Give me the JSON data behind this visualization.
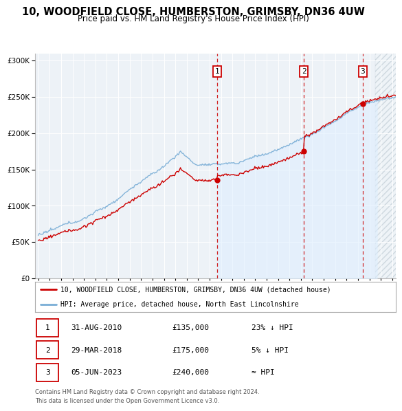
{
  "title1": "10, WOODFIELD CLOSE, HUMBERSTON, GRIMSBY, DN36 4UW",
  "title2": "Price paid vs. HM Land Registry's House Price Index (HPI)",
  "ylim": [
    0,
    310000
  ],
  "xlim_start": 1994.7,
  "xlim_end": 2026.3,
  "sale_color": "#cc0000",
  "hpi_color": "#7aaed6",
  "hpi_fill_color": "#ddeeff",
  "marker_dates": [
    2010.667,
    2018.25,
    2023.42
  ],
  "marker_labels": [
    "1",
    "2",
    "3"
  ],
  "marker_prices": [
    135000,
    175000,
    240000
  ],
  "legend_label_sale": "10, WOODFIELD CLOSE, HUMBERSTON, GRIMSBY, DN36 4UW (detached house)",
  "legend_label_hpi": "HPI: Average price, detached house, North East Lincolnshire",
  "table_rows": [
    [
      "1",
      "31-AUG-2010",
      "£135,000",
      "23% ↓ HPI"
    ],
    [
      "2",
      "29-MAR-2018",
      "£175,000",
      "5% ↓ HPI"
    ],
    [
      "3",
      "05-JUN-2023",
      "£240,000",
      "≈ HPI"
    ]
  ],
  "footnote1": "Contains HM Land Registry data © Crown copyright and database right 2024.",
  "footnote2": "This data is licensed under the Open Government Licence v3.0.",
  "background_color": "#ffffff",
  "plot_bg_color": "#edf2f7",
  "hatch_region_start": 2024.5
}
